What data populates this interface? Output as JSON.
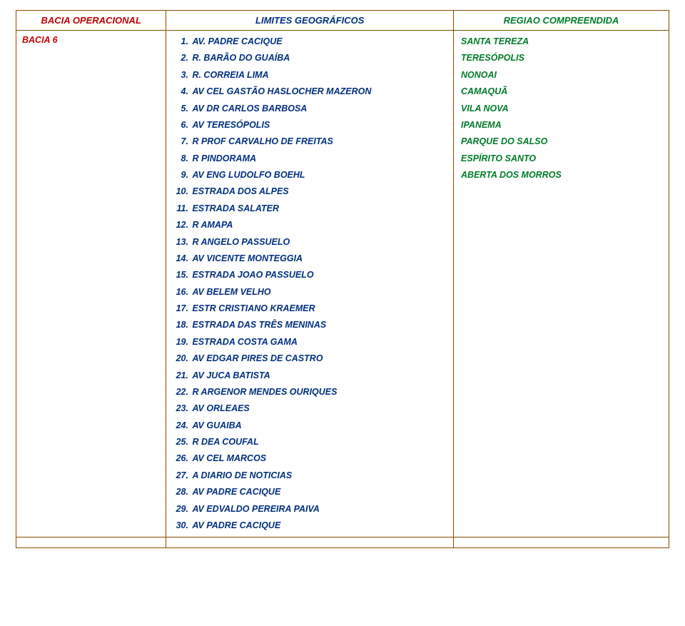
{
  "header": {
    "col1": "BACIA OPERACIONAL",
    "col2": "LIMITES GEOGRÁFICOS",
    "col3": "REGIAO COMPREENDIDA"
  },
  "row": {
    "bacia": "BACIA 6",
    "limits": [
      "AV. PADRE CACIQUE",
      "R. BARÃO DO GUAÍBA",
      "R. CORREIA LIMA",
      "AV CEL GASTÃO HASLOCHER MAZERON",
      "AV DR CARLOS BARBOSA",
      "AV TERESÓPOLIS",
      "R PROF CARVALHO DE FREITAS",
      "R PINDORAMA",
      "AV ENG LUDOLFO BOEHL",
      "ESTRADA DOS ALPES",
      "ESTRADA SALATER",
      "R AMAPA",
      "R ANGELO PASSUELO",
      "AV VICENTE MONTEGGIA",
      "ESTRADA JOAO PASSUELO",
      "AV BELEM VELHO",
      "ESTR CRISTIANO KRAEMER",
      "ESTRADA DAS TRÊS MENINAS",
      "ESTRADA COSTA GAMA",
      "AV EDGAR PIRES DE CASTRO",
      "AV JUCA BATISTA",
      "R ARGENOR MENDES OURIQUES",
      "AV ORLEAES",
      "AV GUAIBA",
      "R DEA COUFAL",
      "AV CEL MARCOS",
      "A DIARIO DE NOTICIAS",
      "AV PADRE CACIQUE",
      "AV EDVALDO PEREIRA PAIVA",
      "AV PADRE CACIQUE"
    ],
    "regions": [
      "SANTA TEREZA",
      "TERESÓPOLIS",
      "NONOAI",
      "CAMAQUÃ",
      "VILA NOVA",
      "IPANEMA",
      "PARQUE DO SALSO",
      "ESPÍRITO SANTO",
      "ABERTA DOS MORROS"
    ]
  },
  "colors": {
    "border": "#8a4a00",
    "red": "#c00000",
    "blue": "#002f80",
    "green": "#007c2a",
    "background": "#ffffff"
  },
  "typography": {
    "header_fontsize": 13,
    "body_fontsize": 12.5,
    "font_family": "Arial",
    "style": "bold italic"
  }
}
